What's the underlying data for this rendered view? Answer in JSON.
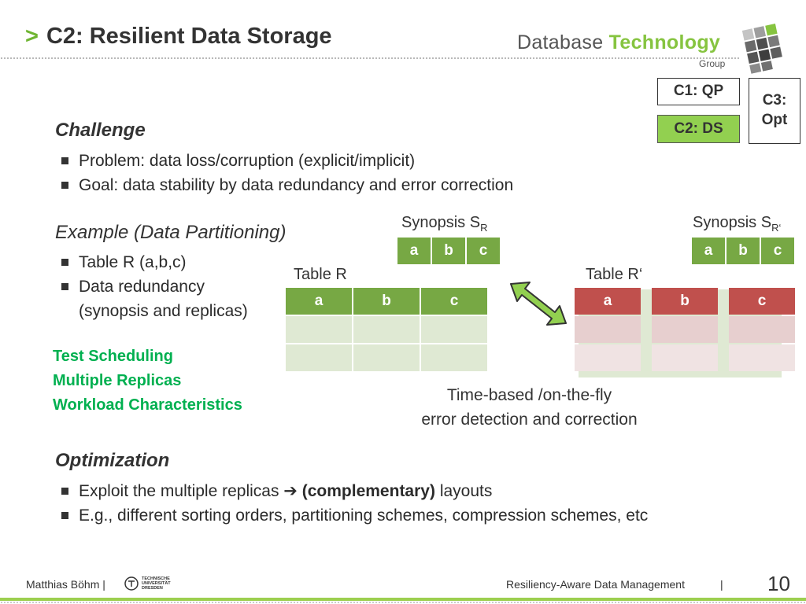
{
  "header": {
    "chevron": ">",
    "title": "C2: Resilient Data Storage",
    "logo_word1": "Database",
    "logo_word2": "Technology",
    "logo_group": "Group"
  },
  "nav": {
    "c1": "C1: QP",
    "c2": "C2: DS",
    "c3_line1": "C3:",
    "c3_line2": "Opt"
  },
  "challenge": {
    "heading": "Challenge",
    "bullets": [
      "Problem: data loss/corruption (explicit/implicit)",
      "Goal: data stability by data redundancy and error correction"
    ]
  },
  "example": {
    "heading": "Example (Data Partitioning)",
    "bullet1": "Table R (a,b,c)",
    "bullet2": "Data redundancy",
    "bullet2_cont": "(synopsis and replicas)"
  },
  "green_items": [
    "Test Scheduling",
    "Multiple Replicas",
    "Workload Characteristics"
  ],
  "diagram": {
    "synopsis_r": {
      "label": "Synopsis S",
      "sub": "R",
      "cols": [
        "a",
        "b",
        "c"
      ]
    },
    "synopsis_r2": {
      "label": "Synopsis S",
      "sub": "R‘",
      "cols": [
        "a",
        "b",
        "c"
      ]
    },
    "table_r": {
      "label": "Table R",
      "cols": [
        "a",
        "b",
        "c"
      ]
    },
    "table_r2": {
      "label": "Table R‘",
      "cols": [
        "a",
        "b",
        "c"
      ]
    },
    "caption_line1": "Time-based /on-the-fly",
    "caption_line2": "error detection and correction"
  },
  "optimization": {
    "heading": "Optimization",
    "bullet1_pre": "Exploit the multiple replicas",
    "bullet1_arrow": "➔",
    "bullet1_bold": "(complementary)",
    "bullet1_post": "layouts",
    "bullet2": "E.g., different sorting orders, partitioning schemes, compression schemes, etc"
  },
  "footer": {
    "author": "Matthias Böhm |",
    "tu_logo": "TECHNISCHE UNIVERSITÄT DRESDEN",
    "talk_title": "Resiliency-Aware Data Management",
    "separator": "|",
    "page_number": "10"
  },
  "colors": {
    "accent_green": "#92d050",
    "table_green": "#77a844",
    "highlight_green": "#00b050",
    "replica_red": "#c0504d"
  }
}
